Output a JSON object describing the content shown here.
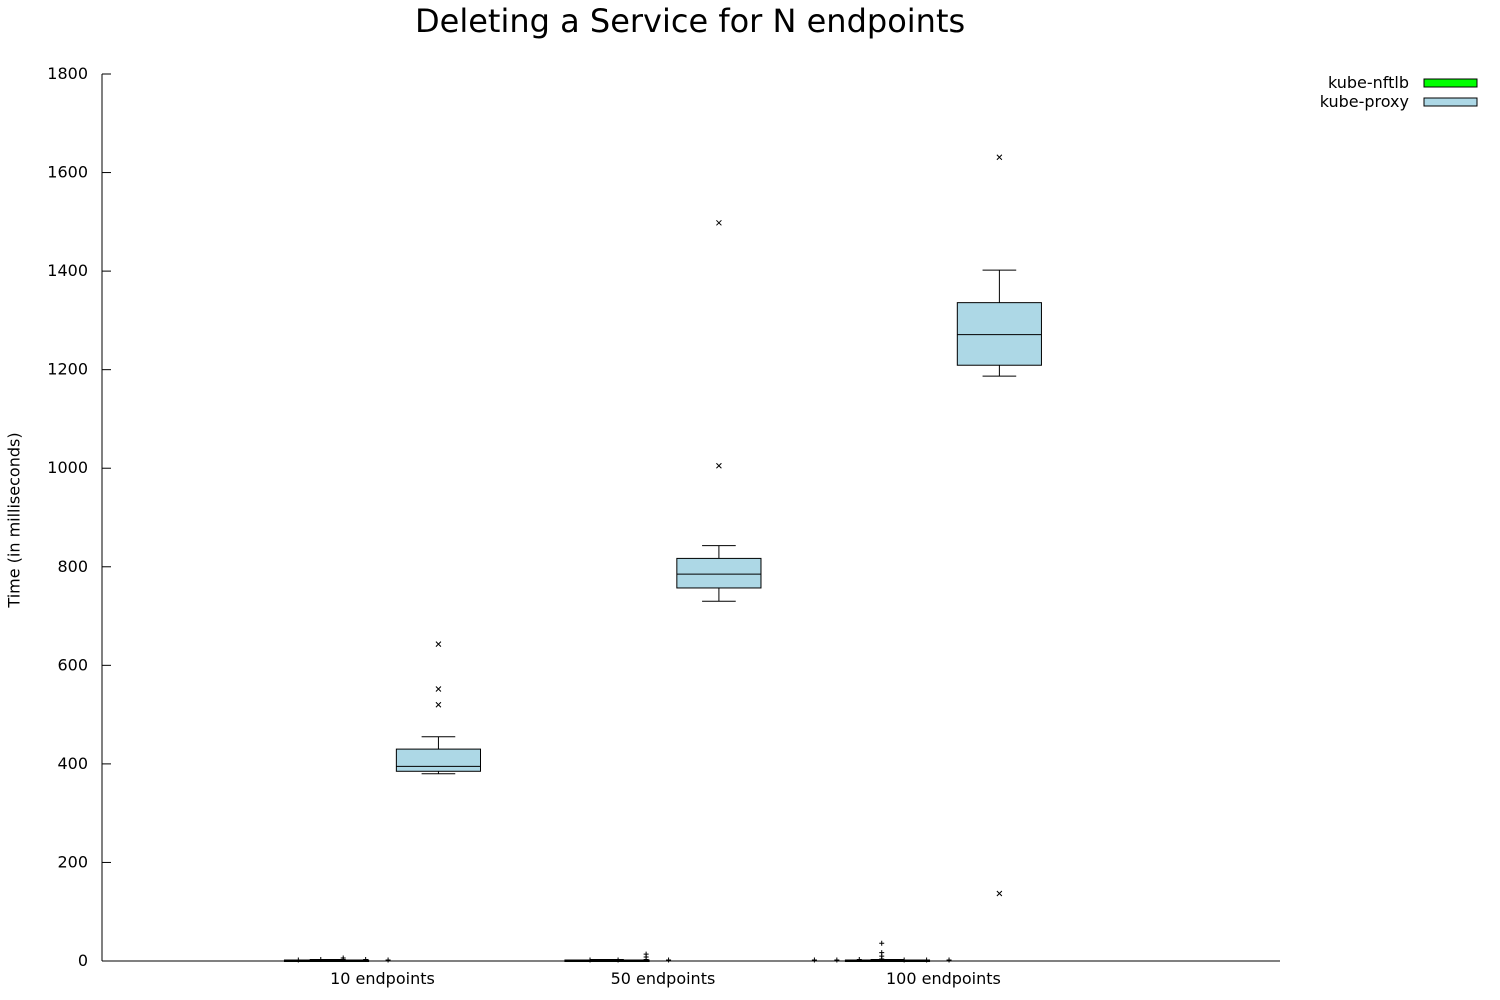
{
  "chart_data": {
    "type": "box",
    "title": "Deleting a Service for N endpoints",
    "xlabel": "",
    "ylabel": "Time (in milliseconds)",
    "ylim": [
      0,
      1800
    ],
    "yticks": [
      0,
      200,
      400,
      600,
      800,
      1000,
      1200,
      1400,
      1600,
      1800
    ],
    "categories": [
      "10 endpoints",
      "50 endpoints",
      "100 endpoints"
    ],
    "legend_position": "top-right",
    "series": [
      {
        "name": "kube-nftlb",
        "color": "#00ff00",
        "outlier_marker": "+",
        "boxes": [
          {
            "min": 0,
            "q1": 0,
            "median": 1,
            "q3": 2,
            "max": 3,
            "outliers": [
              {
                "value": 2,
                "offset": -0.3
              },
              {
                "value": 3,
                "offset": -0.22
              },
              {
                "value": 3,
                "offset": -0.14
              },
              {
                "value": 6,
                "offset": -0.14
              },
              {
                "value": 3,
                "offset": -0.06
              },
              {
                "value": 2,
                "offset": 0.02
              }
            ]
          },
          {
            "min": 0,
            "q1": 0,
            "median": 1,
            "q3": 2,
            "max": 3,
            "outliers": [
              {
                "value": 2,
                "offset": -0.26
              },
              {
                "value": 2,
                "offset": -0.16
              },
              {
                "value": 3,
                "offset": -0.06
              },
              {
                "value": 8,
                "offset": -0.06
              },
              {
                "value": 14,
                "offset": -0.06
              },
              {
                "value": 2,
                "offset": 0.02
              }
            ]
          },
          {
            "min": 0,
            "q1": 0,
            "median": 1,
            "q3": 2,
            "max": 3,
            "outliers": [
              {
                "value": 2,
                "offset": -0.46
              },
              {
                "value": 2,
                "offset": -0.38
              },
              {
                "value": 3,
                "offset": -0.3
              },
              {
                "value": 4,
                "offset": -0.22
              },
              {
                "value": 10,
                "offset": -0.22
              },
              {
                "value": 17,
                "offset": -0.22
              },
              {
                "value": 36,
                "offset": -0.22
              },
              {
                "value": 2,
                "offset": -0.14
              },
              {
                "value": 2,
                "offset": -0.06
              },
              {
                "value": 2,
                "offset": 0.02
              }
            ]
          }
        ]
      },
      {
        "name": "kube-proxy",
        "color": "#add8e6",
        "outlier_marker": "x",
        "boxes": [
          {
            "min": 380,
            "q1": 385,
            "median": 395,
            "q3": 430,
            "max": 455,
            "outliers": [
              {
                "value": 520
              },
              {
                "value": 552
              },
              {
                "value": 643
              }
            ]
          },
          {
            "min": 730,
            "q1": 757,
            "median": 785,
            "q3": 817,
            "max": 843,
            "outliers": [
              {
                "value": 1005
              },
              {
                "value": 1498
              }
            ]
          },
          {
            "min": 1187,
            "q1": 1209,
            "median": 1271,
            "q3": 1336,
            "max": 1402,
            "outliers": [
              {
                "value": 137
              },
              {
                "value": 1631
              }
            ]
          }
        ]
      }
    ]
  }
}
